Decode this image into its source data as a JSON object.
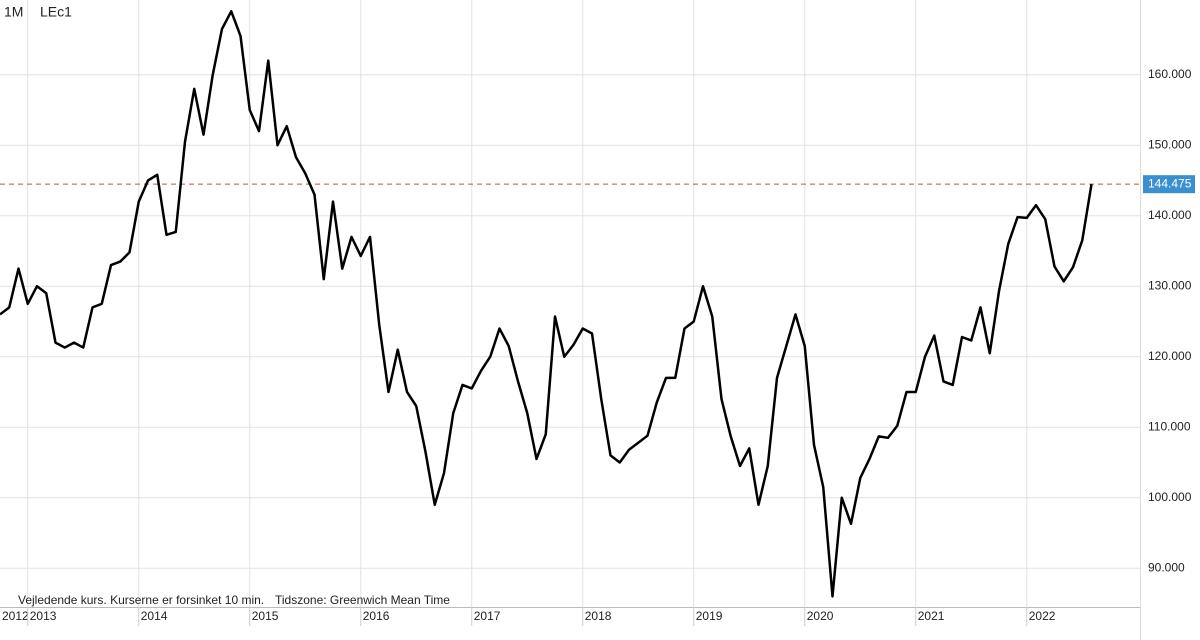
{
  "chart_data": {
    "type": "line",
    "interval": "1M",
    "footnote": [
      "Vejledende kurs. Kurserne er forsinket 10 min.",
      "Tidszone: Greenwich Mean Time"
    ],
    "categories": [
      "2012",
      null,
      null,
      "2013",
      null,
      null,
      null,
      null,
      null,
      null,
      null,
      null,
      null,
      null,
      null,
      "2014",
      null,
      null,
      null,
      null,
      null,
      null,
      null,
      null,
      null,
      null,
      null,
      "2015",
      null,
      null,
      null,
      null,
      null,
      null,
      null,
      null,
      null,
      null,
      null,
      "2016",
      null,
      null,
      null,
      null,
      null,
      null,
      null,
      null,
      null,
      null,
      null,
      "2017",
      null,
      null,
      null,
      null,
      null,
      null,
      null,
      null,
      null,
      null,
      null,
      "2018",
      null,
      null,
      null,
      null,
      null,
      null,
      null,
      null,
      null,
      null,
      null,
      "2019",
      null,
      null,
      null,
      null,
      null,
      null,
      null,
      null,
      null,
      null,
      null,
      "2020",
      null,
      null,
      null,
      null,
      null,
      null,
      null,
      null,
      null,
      null,
      null,
      "2021",
      null,
      null,
      null,
      null,
      null,
      null,
      null,
      null,
      null,
      null,
      null,
      "2022",
      null,
      null,
      null,
      null,
      null,
      null,
      null
    ],
    "series": [
      {
        "name": "LEc1",
        "color": "#000000",
        "values": [
          126,
          127,
          132.5,
          127.5,
          130,
          129,
          122,
          121.3,
          122,
          121.3,
          127,
          127.5,
          133,
          133.5,
          134.8,
          142,
          145,
          145.8,
          137.3,
          137.7,
          150.5,
          158,
          151.5,
          160,
          166.5,
          169,
          165.5,
          155,
          152,
          162,
          150,
          152.7,
          148.3,
          146,
          143,
          131,
          142,
          132.5,
          137,
          134.3,
          137,
          124.5,
          115,
          121,
          115,
          113,
          106.5,
          99,
          103.5,
          112,
          116,
          115.5,
          118,
          120,
          124,
          121.5,
          116.5,
          112,
          105.5,
          109,
          125.7,
          120,
          121.7,
          124,
          123.3,
          114,
          106,
          105,
          106.8,
          107.8,
          108.8,
          113.5,
          117,
          117,
          124,
          125,
          130,
          125.7,
          114,
          108.7,
          104.5,
          107,
          99,
          104.5,
          117,
          121.5,
          126,
          121.5,
          107.5,
          101.5,
          86,
          100,
          96.3,
          102.8,
          105.5,
          108.7,
          108.5,
          110.2,
          115,
          115,
          120,
          123,
          116.5,
          116,
          122.8,
          122.3,
          127,
          120.5,
          129.3,
          136,
          139.8,
          139.7,
          141.5,
          139.5,
          132.8,
          130.7,
          132.7,
          136.5,
          144.475
        ]
      }
    ],
    "current_value": {
      "value": 144.475,
      "label": "144.475",
      "color": "#c0504d",
      "box_color": "#3a8fd0"
    },
    "ylim": [
      84.5,
      170.6
    ],
    "yticks": [
      {
        "value": 90,
        "label": "90.000"
      },
      {
        "value": 100,
        "label": "100.000"
      },
      {
        "value": 110,
        "label": "110.000"
      },
      {
        "value": 120,
        "label": "120.000"
      },
      {
        "value": 130,
        "label": "130.000"
      },
      {
        "value": 140,
        "label": "140.000"
      },
      {
        "value": 150,
        "label": "150.000"
      },
      {
        "value": 160,
        "label": "160.000"
      }
    ],
    "grid": true
  }
}
